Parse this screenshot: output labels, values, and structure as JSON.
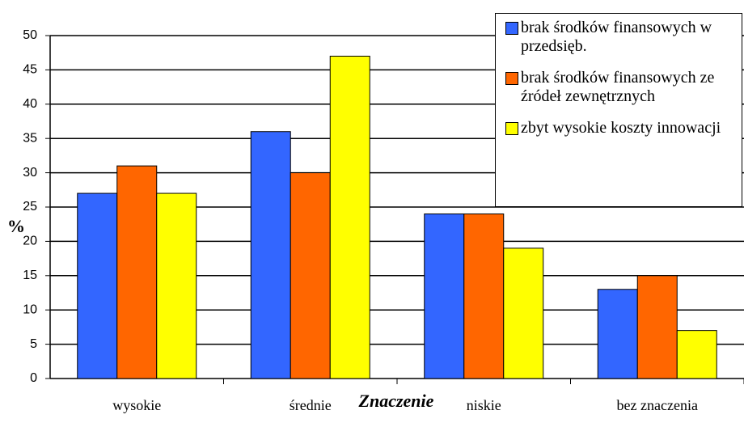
{
  "chart_data": {
    "type": "bar",
    "categories": [
      "wysokie",
      "średnie",
      "niskie",
      "bez znaczenia"
    ],
    "series": [
      {
        "name": "brak środków finansowych w przedsięb.",
        "color": "#3366ff",
        "values": [
          27,
          36,
          24,
          13
        ]
      },
      {
        "name": "brak środków finansowych ze źródeł zewnętrznych",
        "color": "#ff6600",
        "values": [
          31,
          30,
          24,
          15
        ]
      },
      {
        "name": "zbyt wysokie koszty innowacji",
        "color": "#ffff00",
        "values": [
          27,
          47,
          19,
          7
        ]
      }
    ],
    "x_label": "Znaczenie",
    "y_label": "%",
    "ylim": [
      0,
      50
    ],
    "yticks": [
      0,
      5,
      10,
      15,
      20,
      25,
      30,
      35,
      40,
      45,
      50
    ],
    "grid": true,
    "legend": "top-right"
  }
}
